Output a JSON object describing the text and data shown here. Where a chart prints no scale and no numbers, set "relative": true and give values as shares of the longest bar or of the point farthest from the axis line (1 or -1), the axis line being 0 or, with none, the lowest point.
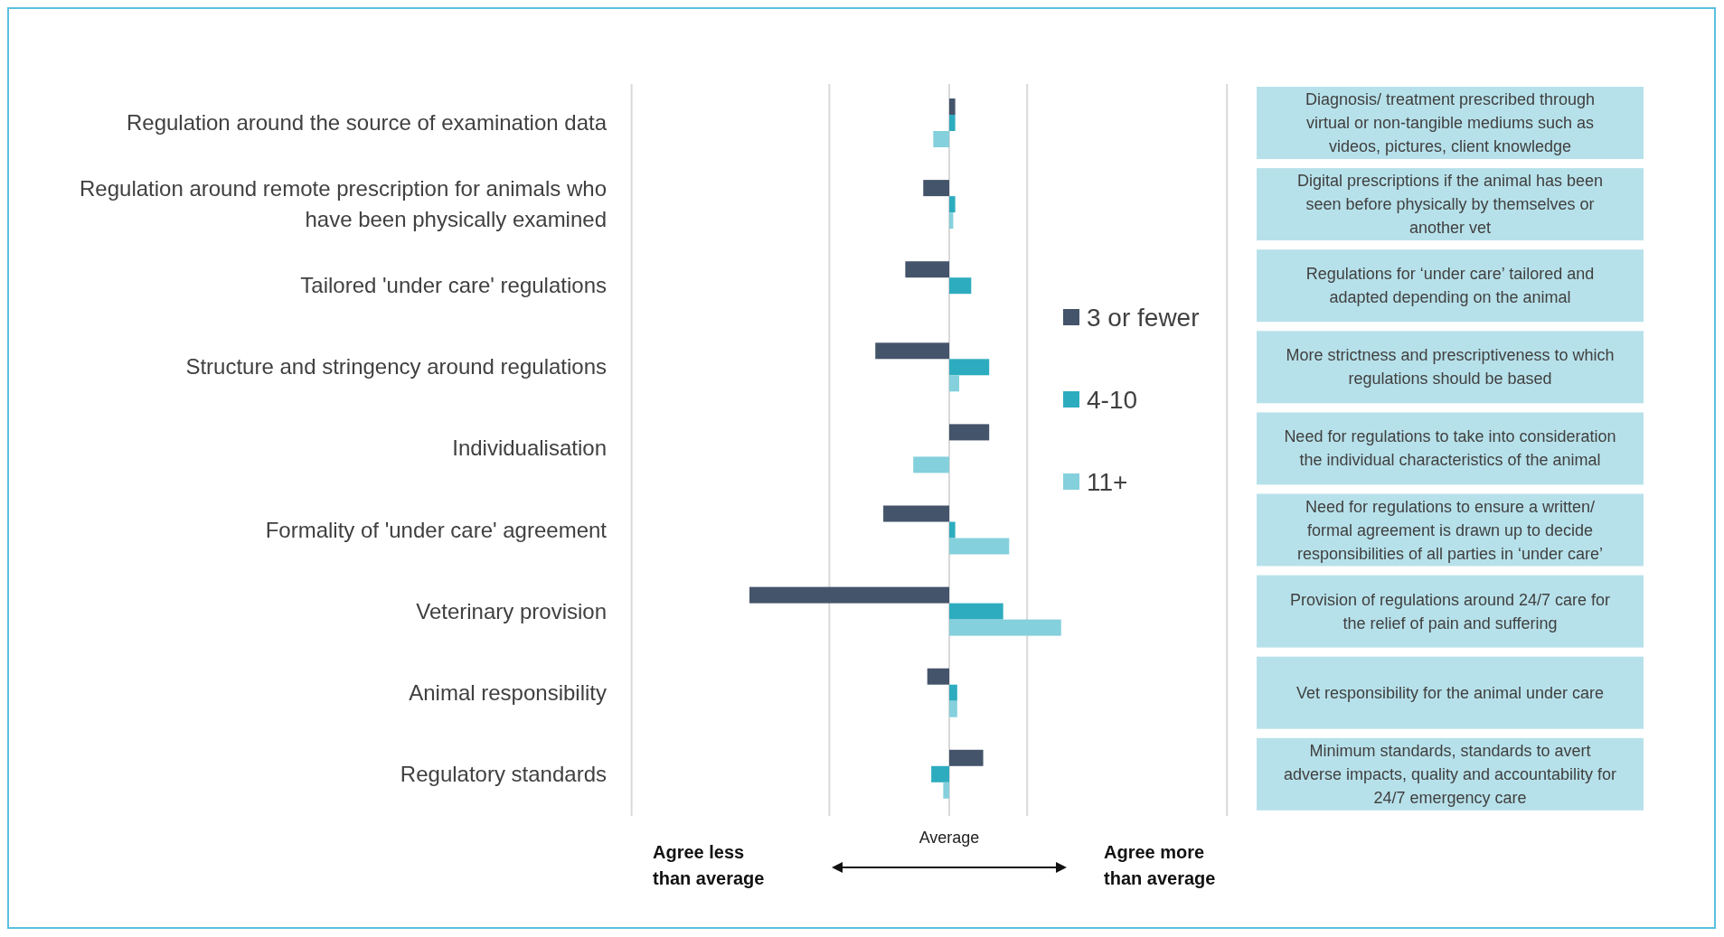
{
  "chart_data": {
    "type": "bar",
    "orientation": "horizontal",
    "relative": true,
    "legend": "right",
    "categories": [
      "Regulation around the source of examination data",
      "Regulation around remote prescription for animals who have been physically examined",
      "Tailored 'under care' regulations",
      "Structure and stringency around regulations",
      "Individualisation",
      "Formality of 'under care' agreement",
      "Veterinary provision",
      "Animal responsibility",
      "Regulatory standards"
    ],
    "series": [
      {
        "name": "3 or fewer",
        "color": "#44546a",
        "values": [
          0.03,
          -0.13,
          -0.22,
          -0.37,
          0.2,
          -0.33,
          -1,
          -0.11,
          0.17
        ]
      },
      {
        "name": "4-10",
        "color": "#2eacbf",
        "values": [
          0.03,
          0.03,
          0.11,
          0.2,
          null,
          0.03,
          0.27,
          0.04,
          -0.09
        ]
      },
      {
        "name": "11+",
        "color": "#84d0dc",
        "values": [
          -0.08,
          0.02,
          null,
          0.05,
          -0.18,
          0.3,
          0.56,
          0.04,
          -0.03
        ]
      }
    ],
    "ref_lines": [
      {
        "axis": "x",
        "value": 0,
        "label": "Average",
        "color": "#d9d9d9"
      },
      {
        "axis": "x",
        "value": -1.59,
        "label": null,
        "color": "#d9d9d9"
      },
      {
        "axis": "x",
        "value": -0.6,
        "label": null,
        "color": "#d9d9d9"
      },
      {
        "axis": "x",
        "value": 0.39,
        "label": null,
        "color": "#d9d9d9"
      },
      {
        "axis": "x",
        "value": 1.39,
        "label": null,
        "color": "#d9d9d9"
      }
    ],
    "annotations": [
      "Diagnosis/ treatment prescribed through virtual or non-tangible mediums such as videos, pictures, client knowledge",
      "Digital prescriptions if the animal has been seen before physically by themselves or another vet",
      "Regulations for ‘under care’ tailored and adapted depending on the animal",
      "More strictness and prescriptiveness to which regulations should be based",
      "Need for regulations to take into consideration the individual characteristics of the animal",
      "Need for regulations to ensure a written/ formal agreement is drawn up to decide responsibilities of all parties in ‘under care’",
      "Provision of regulations around 24/7 care for the relief of pain and suffering",
      "Vet responsibility for the animal under care",
      "Minimum standards, standards to avert adverse impacts, quality and accountability for 24/7 emergency care",
      "Agree less than average",
      "Agree more than average"
    ]
  }
}
